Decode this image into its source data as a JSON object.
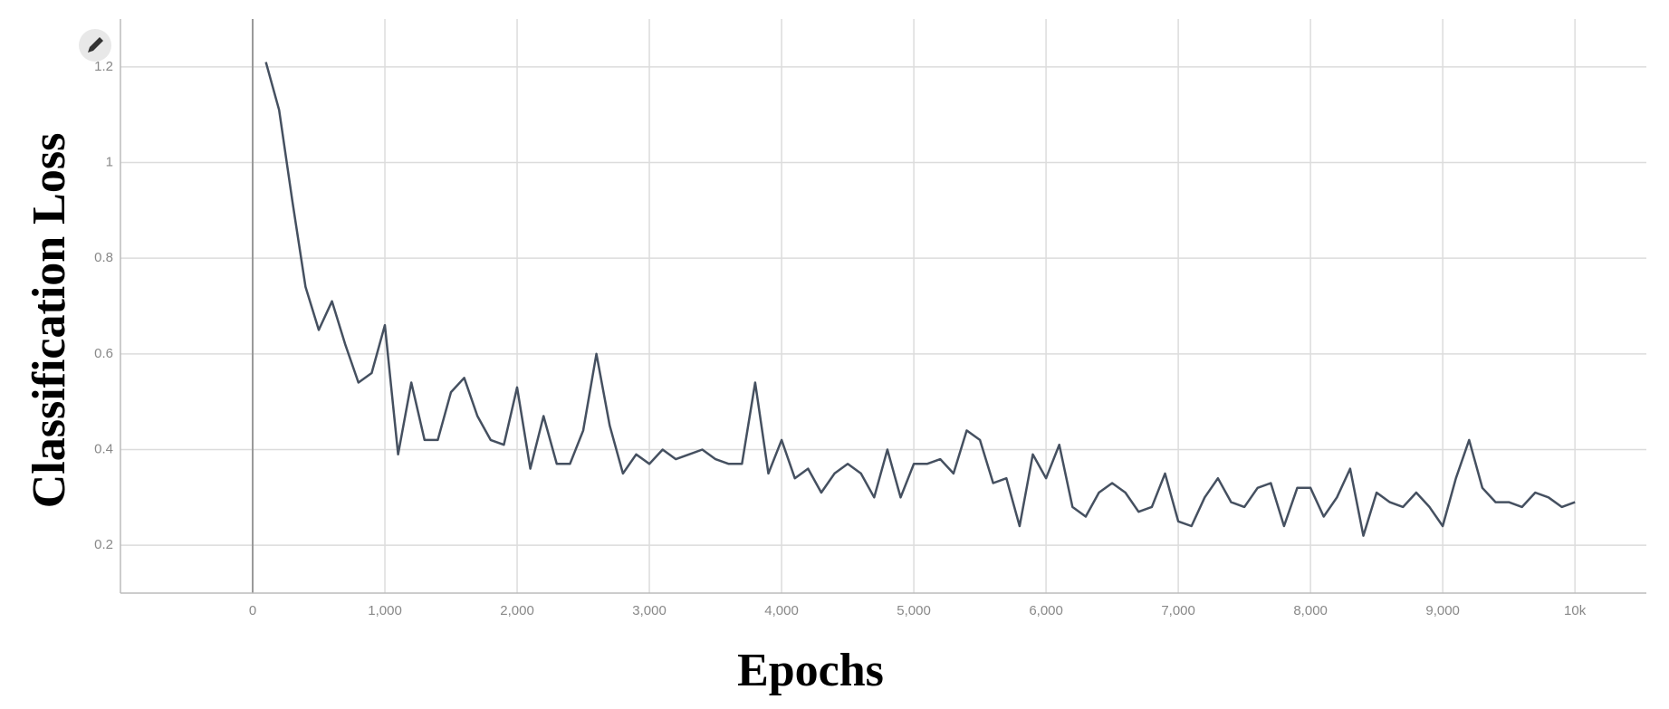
{
  "chart_data": {
    "type": "line",
    "x_label": "Epochs",
    "y_label": "Classification Loss",
    "x": [
      100,
      200,
      300,
      400,
      500,
      600,
      700,
      800,
      900,
      1000,
      1100,
      1200,
      1300,
      1400,
      1500,
      1600,
      1700,
      1800,
      1900,
      2000,
      2100,
      2200,
      2300,
      2400,
      2500,
      2600,
      2700,
      2800,
      2900,
      3000,
      3100,
      3200,
      3300,
      3400,
      3500,
      3600,
      3700,
      3800,
      3900,
      4000,
      4100,
      4200,
      4300,
      4400,
      4500,
      4600,
      4700,
      4800,
      4900,
      5000,
      5100,
      5200,
      5300,
      5400,
      5500,
      5600,
      5700,
      5800,
      5900,
      6000,
      6100,
      6200,
      6300,
      6400,
      6500,
      6600,
      6700,
      6800,
      6900,
      7000,
      7100,
      7200,
      7300,
      7400,
      7500,
      7600,
      7700,
      7800,
      7900,
      8000,
      8100,
      8200,
      8300,
      8400,
      8500,
      8600,
      8700,
      8800,
      8900,
      9000,
      9100,
      9200,
      9300,
      9400,
      9500,
      9600,
      9700,
      9800,
      9900,
      10000
    ],
    "values": [
      1.21,
      1.11,
      0.92,
      0.74,
      0.65,
      0.71,
      0.62,
      0.54,
      0.56,
      0.66,
      0.39,
      0.54,
      0.42,
      0.42,
      0.52,
      0.55,
      0.47,
      0.42,
      0.41,
      0.53,
      0.36,
      0.47,
      0.37,
      0.37,
      0.44,
      0.6,
      0.45,
      0.35,
      0.39,
      0.37,
      0.4,
      0.38,
      0.39,
      0.4,
      0.38,
      0.37,
      0.37,
      0.54,
      0.35,
      0.42,
      0.34,
      0.36,
      0.31,
      0.35,
      0.37,
      0.35,
      0.3,
      0.4,
      0.3,
      0.37,
      0.37,
      0.38,
      0.35,
      0.44,
      0.42,
      0.33,
      0.34,
      0.24,
      0.39,
      0.34,
      0.41,
      0.28,
      0.26,
      0.31,
      0.33,
      0.31,
      0.27,
      0.28,
      0.35,
      0.25,
      0.24,
      0.3,
      0.34,
      0.29,
      0.28,
      0.32,
      0.33,
      0.24,
      0.32,
      0.32,
      0.26,
      0.3,
      0.36,
      0.22,
      0.31,
      0.29,
      0.28,
      0.31,
      0.28,
      0.24,
      0.34,
      0.42,
      0.32,
      0.29,
      0.29,
      0.28,
      0.31,
      0.3,
      0.28,
      0.29
    ],
    "color": "#455060",
    "xlim": [
      -1000,
      10540
    ],
    "ylim": [
      0.1,
      1.3
    ],
    "xticks": [
      0,
      {
        "value": 1000,
        "label": "1,000"
      },
      {
        "value": 2000,
        "label": "2,000"
      },
      {
        "value": 3000,
        "label": "3,000"
      },
      {
        "value": 4000,
        "label": "4,000"
      },
      {
        "value": 5000,
        "label": "5,000"
      },
      {
        "value": 6000,
        "label": "6,000"
      },
      {
        "value": 7000,
        "label": "7,000"
      },
      {
        "value": 8000,
        "label": "8,000"
      },
      {
        "value": 9000,
        "label": "9,000"
      },
      {
        "value": 10000,
        "label": "10k"
      }
    ],
    "yticks": [
      0.2,
      0.4,
      0.6,
      0.8,
      1,
      1.2
    ],
    "grid": true
  }
}
